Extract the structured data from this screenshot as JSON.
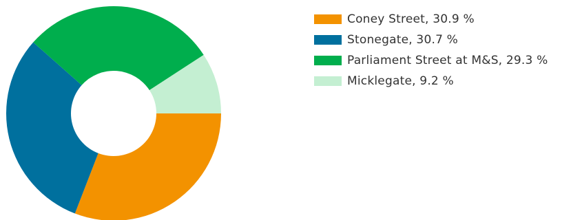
{
  "chart_data": {
    "type": "pie",
    "title": "",
    "categories": [
      "Coney Street",
      "Stonegate",
      "Parliament Street at M&S",
      "Micklegate"
    ],
    "values": [
      30.9,
      30.7,
      29.3,
      9.2
    ],
    "unit": "%",
    "colors": [
      "#f39200",
      "#00709e",
      "#00ae4d",
      "#c4efd2"
    ],
    "legend": [
      {
        "label": "Coney Street, 30.9 %",
        "color": "#f39200"
      },
      {
        "label": "Stonegate, 30.7 %",
        "color": "#00709e"
      },
      {
        "label": "Parliament Street at M&S, 29.3 %",
        "color": "#00ae4d"
      },
      {
        "label": "Micklegate, 9.2 %",
        "color": "#c4efd2"
      }
    ],
    "legend_position": "right"
  }
}
